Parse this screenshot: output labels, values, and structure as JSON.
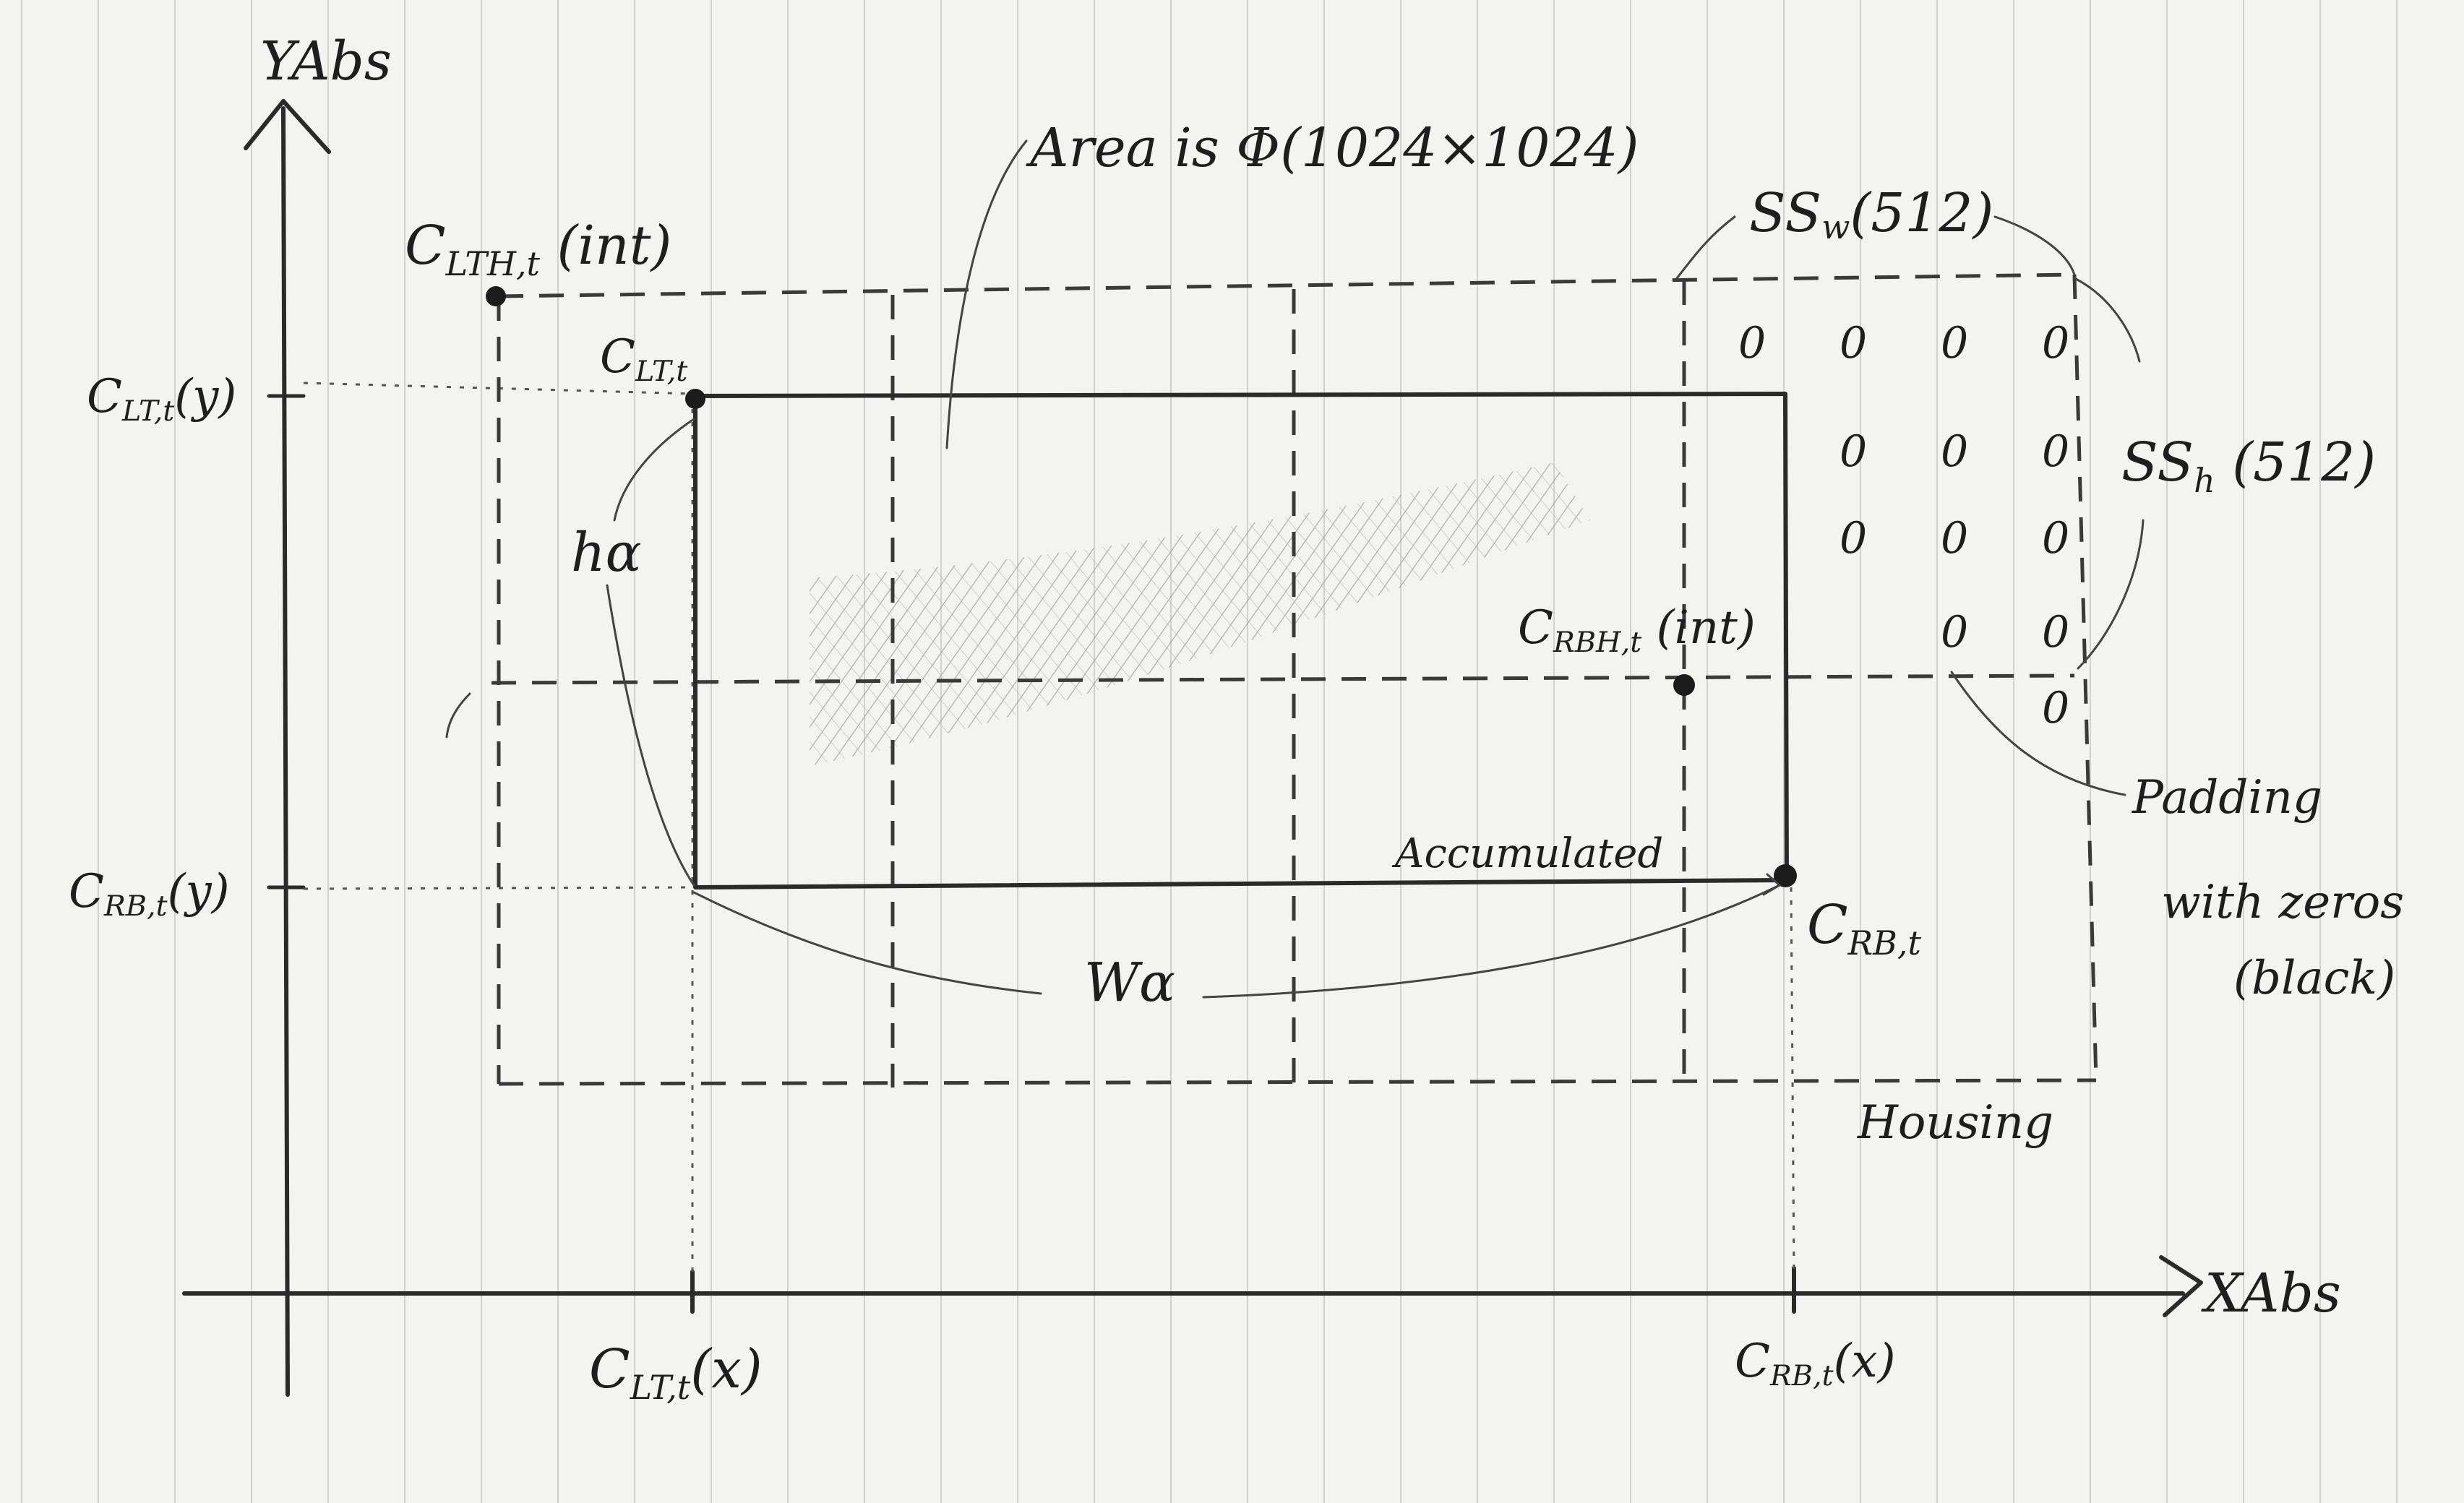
{
  "axes": {
    "y_label": "YAbs",
    "x_label": "XAbs"
  },
  "points": {
    "clth": {
      "main": "C",
      "sub": "LTH,t",
      "suffix": " (int)"
    },
    "clt": {
      "main": "C",
      "sub": "LT,t",
      "suffix": ""
    },
    "crbh": {
      "main": "C",
      "sub": "RBH,t",
      "suffix": " (int)"
    },
    "crb": {
      "main": "C",
      "sub": "RB,t",
      "suffix": ""
    }
  },
  "coord_labels": {
    "clt_y": {
      "main": "C",
      "sub": "LT,t",
      "suffix": "(y)"
    },
    "crb_y": {
      "main": "C",
      "sub": "RB,t",
      "suffix": "(y)"
    },
    "clt_x": {
      "main": "C",
      "sub": "LT,t",
      "suffix": "(x)"
    },
    "crb_x": {
      "main": "C",
      "sub": "RB,t",
      "suffix": "(x)"
    }
  },
  "annotations": {
    "area": "Area is Φ(1024×1024)",
    "ssw": {
      "main": "SS",
      "sub": "w",
      "suffix": "(512)"
    },
    "ssh": {
      "main": "SS",
      "sub": "h",
      "suffix": " (512)"
    },
    "ha": "hα",
    "wa": "Wα",
    "accumulated": "Accumulated",
    "padding_line1": "Padding",
    "padding_line2": "with zeros",
    "padding_line3": "(black)",
    "housing": "Housing"
  },
  "zeros": [
    "0",
    "0",
    "0",
    "0",
    "0",
    "0",
    "0",
    "0",
    "0",
    "0",
    "0",
    "0",
    "0"
  ]
}
